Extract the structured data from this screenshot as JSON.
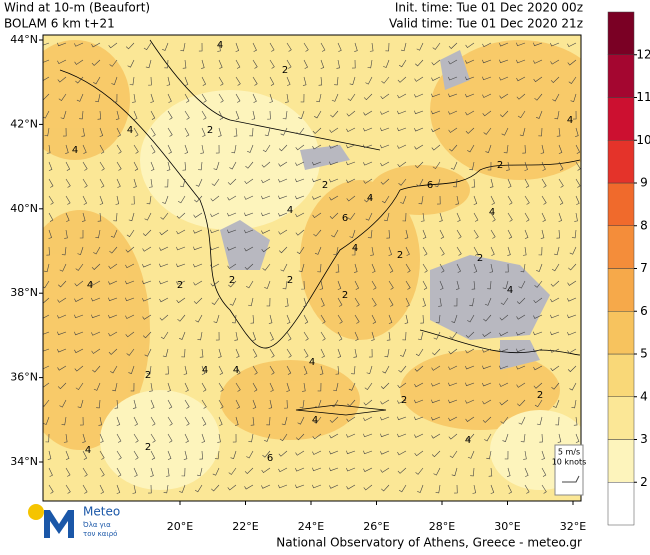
{
  "header": {
    "title": "Wind at 10-m (Beaufort)",
    "model": "BOLAM 6 km t+21",
    "init_time": "Init. time: Tue 01 Dec 2020 00z",
    "valid_time": "Valid time: Tue 01 Dec 2020 21z"
  },
  "map": {
    "lat_ticks": [
      {
        "value": 44,
        "label": "44°N"
      },
      {
        "value": 42,
        "label": "42°N"
      },
      {
        "value": 40,
        "label": "40°N"
      },
      {
        "value": 38,
        "label": "38°N"
      },
      {
        "value": 36,
        "label": "36°N"
      },
      {
        "value": 34,
        "label": "34°N"
      }
    ],
    "lon_ticks": [
      {
        "value": 20,
        "label": "20°E"
      },
      {
        "value": 22,
        "label": "22°E"
      },
      {
        "value": 24,
        "label": "24°E"
      },
      {
        "value": 26,
        "label": "26°E"
      },
      {
        "value": 28,
        "label": "28°E"
      },
      {
        "value": 30,
        "label": "30°E"
      },
      {
        "value": 32,
        "label": "32°E"
      }
    ],
    "contour_labels": [
      "4",
      "2",
      "4",
      "2",
      "4",
      "2",
      "4",
      "2",
      "4",
      "6",
      "6",
      "4",
      "2",
      "4",
      "2",
      "4",
      "2",
      "4",
      "2",
      "2",
      "4",
      "2",
      "4",
      "4",
      "2",
      "2",
      "4",
      "6",
      "4",
      "2",
      "4",
      "2",
      "4"
    ],
    "wind_legend": {
      "speed": "5 m/s",
      "knots": "10 knots"
    }
  },
  "colorbar": {
    "levels": [
      2,
      3,
      4,
      5,
      6,
      7,
      8,
      9,
      10,
      11,
      12
    ],
    "colors": [
      "#ffffff",
      "#fdf4bc",
      "#fbe796",
      "#f9d878",
      "#f7c35e",
      "#f6a94a",
      "#f48d3a",
      "#f06a2c",
      "#e4332a",
      "#cc1030",
      "#a40630",
      "#7a0024"
    ]
  },
  "footer": {
    "credit": "National Observatory of Athens, Greece - meteo.gr",
    "logo": "Meteo",
    "slogan_1": "Όλα για",
    "slogan_2": "τον καιρό"
  }
}
